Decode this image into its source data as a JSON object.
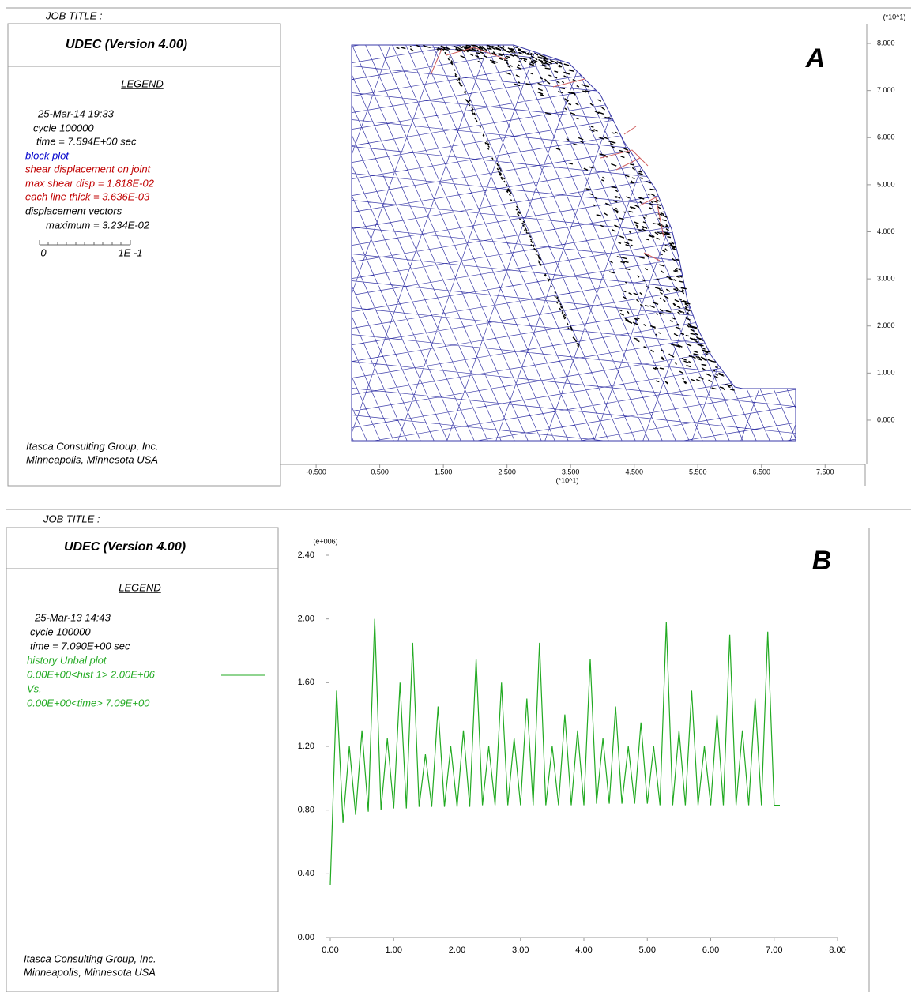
{
  "chart_data": [
    {
      "type": "block",
      "job_title": "JOB TITLE :",
      "header": "UDEC (Version 4.00)",
      "legend_title": "LEGEND",
      "legend_lines": [
        {
          "text": "25-Mar-14  19:33",
          "color": "#000000"
        },
        {
          "text": "cycle    100000",
          "color": "#000000"
        },
        {
          "text": "time  =  7.594E+00 sec",
          "color": "#000000"
        },
        {
          "text": "block plot",
          "color": "#0000cc"
        },
        {
          "text": "shear displacement on joint",
          "color": "#c00000"
        },
        {
          "text": "max shear disp =  1.818E-02",
          "color": "#c00000"
        },
        {
          "text": "each line thick = 3.636E-03",
          "color": "#c00000"
        },
        {
          "text": "displacement vectors",
          "color": "#000000"
        },
        {
          "text": "maximum =     3.234E-02",
          "color": "#000000"
        }
      ],
      "scale_labels": [
        "0",
        "1E -1"
      ],
      "footer": [
        "Itasca Consulting Group, Inc.",
        "Minneapolis, Minnesota  USA"
      ],
      "plot_label": "A",
      "x_axis_label": "(*10^1)",
      "y_axis_label": "(*10^1)",
      "xlim": [
        -1.06,
        8.13
      ],
      "ylim": [
        -0.94,
        8.42
      ],
      "xticks": [
        {
          "value": -0.5,
          "label": "-0.500"
        },
        {
          "value": 0.5,
          "label": "0.500"
        },
        {
          "value": 1.5,
          "label": "1.500"
        },
        {
          "value": 2.5,
          "label": "2.500"
        },
        {
          "value": 3.5,
          "label": "3.500"
        },
        {
          "value": 4.5,
          "label": "4.500"
        },
        {
          "value": 5.5,
          "label": "5.500"
        },
        {
          "value": 6.5,
          "label": "6.500"
        },
        {
          "value": 7.5,
          "label": "7.500"
        }
      ],
      "yticks": [
        {
          "value": 0,
          "label": "0.000"
        },
        {
          "value": 1,
          "label": "1.000"
        },
        {
          "value": 2,
          "label": "2.000"
        },
        {
          "value": 3,
          "label": "3.000"
        },
        {
          "value": 4,
          "label": "4.000"
        },
        {
          "value": 5,
          "label": "5.000"
        },
        {
          "value": 6,
          "label": "6.000"
        },
        {
          "value": 7,
          "label": "7.000"
        },
        {
          "value": 8,
          "label": "8.000"
        }
      ],
      "color": "#3a3aa8"
    },
    {
      "type": "line",
      "job_title": "JOB TITLE :",
      "header": "UDEC (Version 4.00)",
      "legend_title": "LEGEND",
      "legend_lines": [
        {
          "text": "25-Mar-13   14:43",
          "color": "#000000"
        },
        {
          "text": "cycle    100000",
          "color": "#000000"
        },
        {
          "text": "time  =  7.090E+00 sec",
          "color": "#000000"
        },
        {
          "text": "history Unbal plot",
          "color": "#22aa22"
        },
        {
          "text": "0.00E+00<hist  1> 2.00E+06",
          "color": "#22aa22"
        },
        {
          "text": "Vs.",
          "color": "#22aa22"
        },
        {
          "text": "0.00E+00<time> 7.09E+00",
          "color": "#22aa22"
        }
      ],
      "footer": [
        "Itasca Consulting Group, Inc.",
        "Minneapolis, Minnesota  USA"
      ],
      "plot_label": "B",
      "y_axis_label": "(e+006)",
      "xlim": [
        0,
        8
      ],
      "ylim": [
        0,
        2.4
      ],
      "xticks": [
        {
          "value": 0,
          "label": "0.00"
        },
        {
          "value": 1,
          "label": "1.00"
        },
        {
          "value": 2,
          "label": "2.00"
        },
        {
          "value": 3,
          "label": "3.00"
        },
        {
          "value": 4,
          "label": "4.00"
        },
        {
          "value": 5,
          "label": "5.00"
        },
        {
          "value": 6,
          "label": "6.00"
        },
        {
          "value": 7,
          "label": "7.00"
        },
        {
          "value": 8,
          "label": "8.00"
        }
      ],
      "yticks": [
        {
          "value": 0,
          "label": "0.00"
        },
        {
          "value": 0.4,
          "label": "0.40"
        },
        {
          "value": 0.8,
          "label": "0.80"
        },
        {
          "value": 1.2,
          "label": "1.20"
        },
        {
          "value": 1.6,
          "label": "1.60"
        },
        {
          "value": 2,
          "label": "2.00"
        },
        {
          "value": 2.4,
          "label": "2.40"
        }
      ],
      "series": [
        {
          "color": "#22aa22",
          "x": [
            0,
            0.1,
            0.2,
            0.3,
            0.4,
            0.5,
            0.6,
            0.7,
            0.8,
            0.9,
            1.0,
            1.1,
            1.2,
            1.3,
            1.4,
            1.5,
            1.6,
            1.7,
            1.8,
            1.9,
            2.0,
            2.1,
            2.2,
            2.3,
            2.4,
            2.5,
            2.6,
            2.7,
            2.8,
            2.9,
            3.0,
            3.1,
            3.2,
            3.3,
            3.4,
            3.5,
            3.6,
            3.7,
            3.8,
            3.9,
            4.0,
            4.1,
            4.2,
            4.3,
            4.4,
            4.5,
            4.6,
            4.7,
            4.8,
            4.9,
            5.0,
            5.1,
            5.2,
            5.3,
            5.4,
            5.5,
            5.6,
            5.7,
            5.8,
            5.9,
            6.0,
            6.1,
            6.2,
            6.3,
            6.4,
            6.5,
            6.6,
            6.7,
            6.8,
            6.9,
            7.0,
            7.09
          ],
          "values": [
            0.33,
            1.55,
            0.72,
            1.2,
            0.77,
            1.3,
            0.79,
            2.0,
            0.8,
            1.25,
            0.81,
            1.6,
            0.81,
            1.85,
            0.82,
            1.15,
            0.82,
            1.45,
            0.82,
            1.2,
            0.82,
            1.3,
            0.82,
            1.75,
            0.83,
            1.2,
            0.83,
            1.6,
            0.83,
            1.25,
            0.83,
            1.5,
            0.83,
            1.85,
            0.83,
            1.2,
            0.83,
            1.4,
            0.83,
            1.3,
            0.83,
            1.75,
            0.84,
            1.25,
            0.84,
            1.45,
            0.84,
            1.2,
            0.84,
            1.35,
            0.84,
            1.2,
            0.83,
            1.98,
            0.83,
            1.3,
            0.83,
            1.55,
            0.83,
            1.2,
            0.83,
            1.4,
            0.83,
            1.9,
            0.83,
            1.3,
            0.83,
            1.5,
            0.83,
            1.92,
            0.83,
            0.83
          ]
        }
      ]
    }
  ]
}
